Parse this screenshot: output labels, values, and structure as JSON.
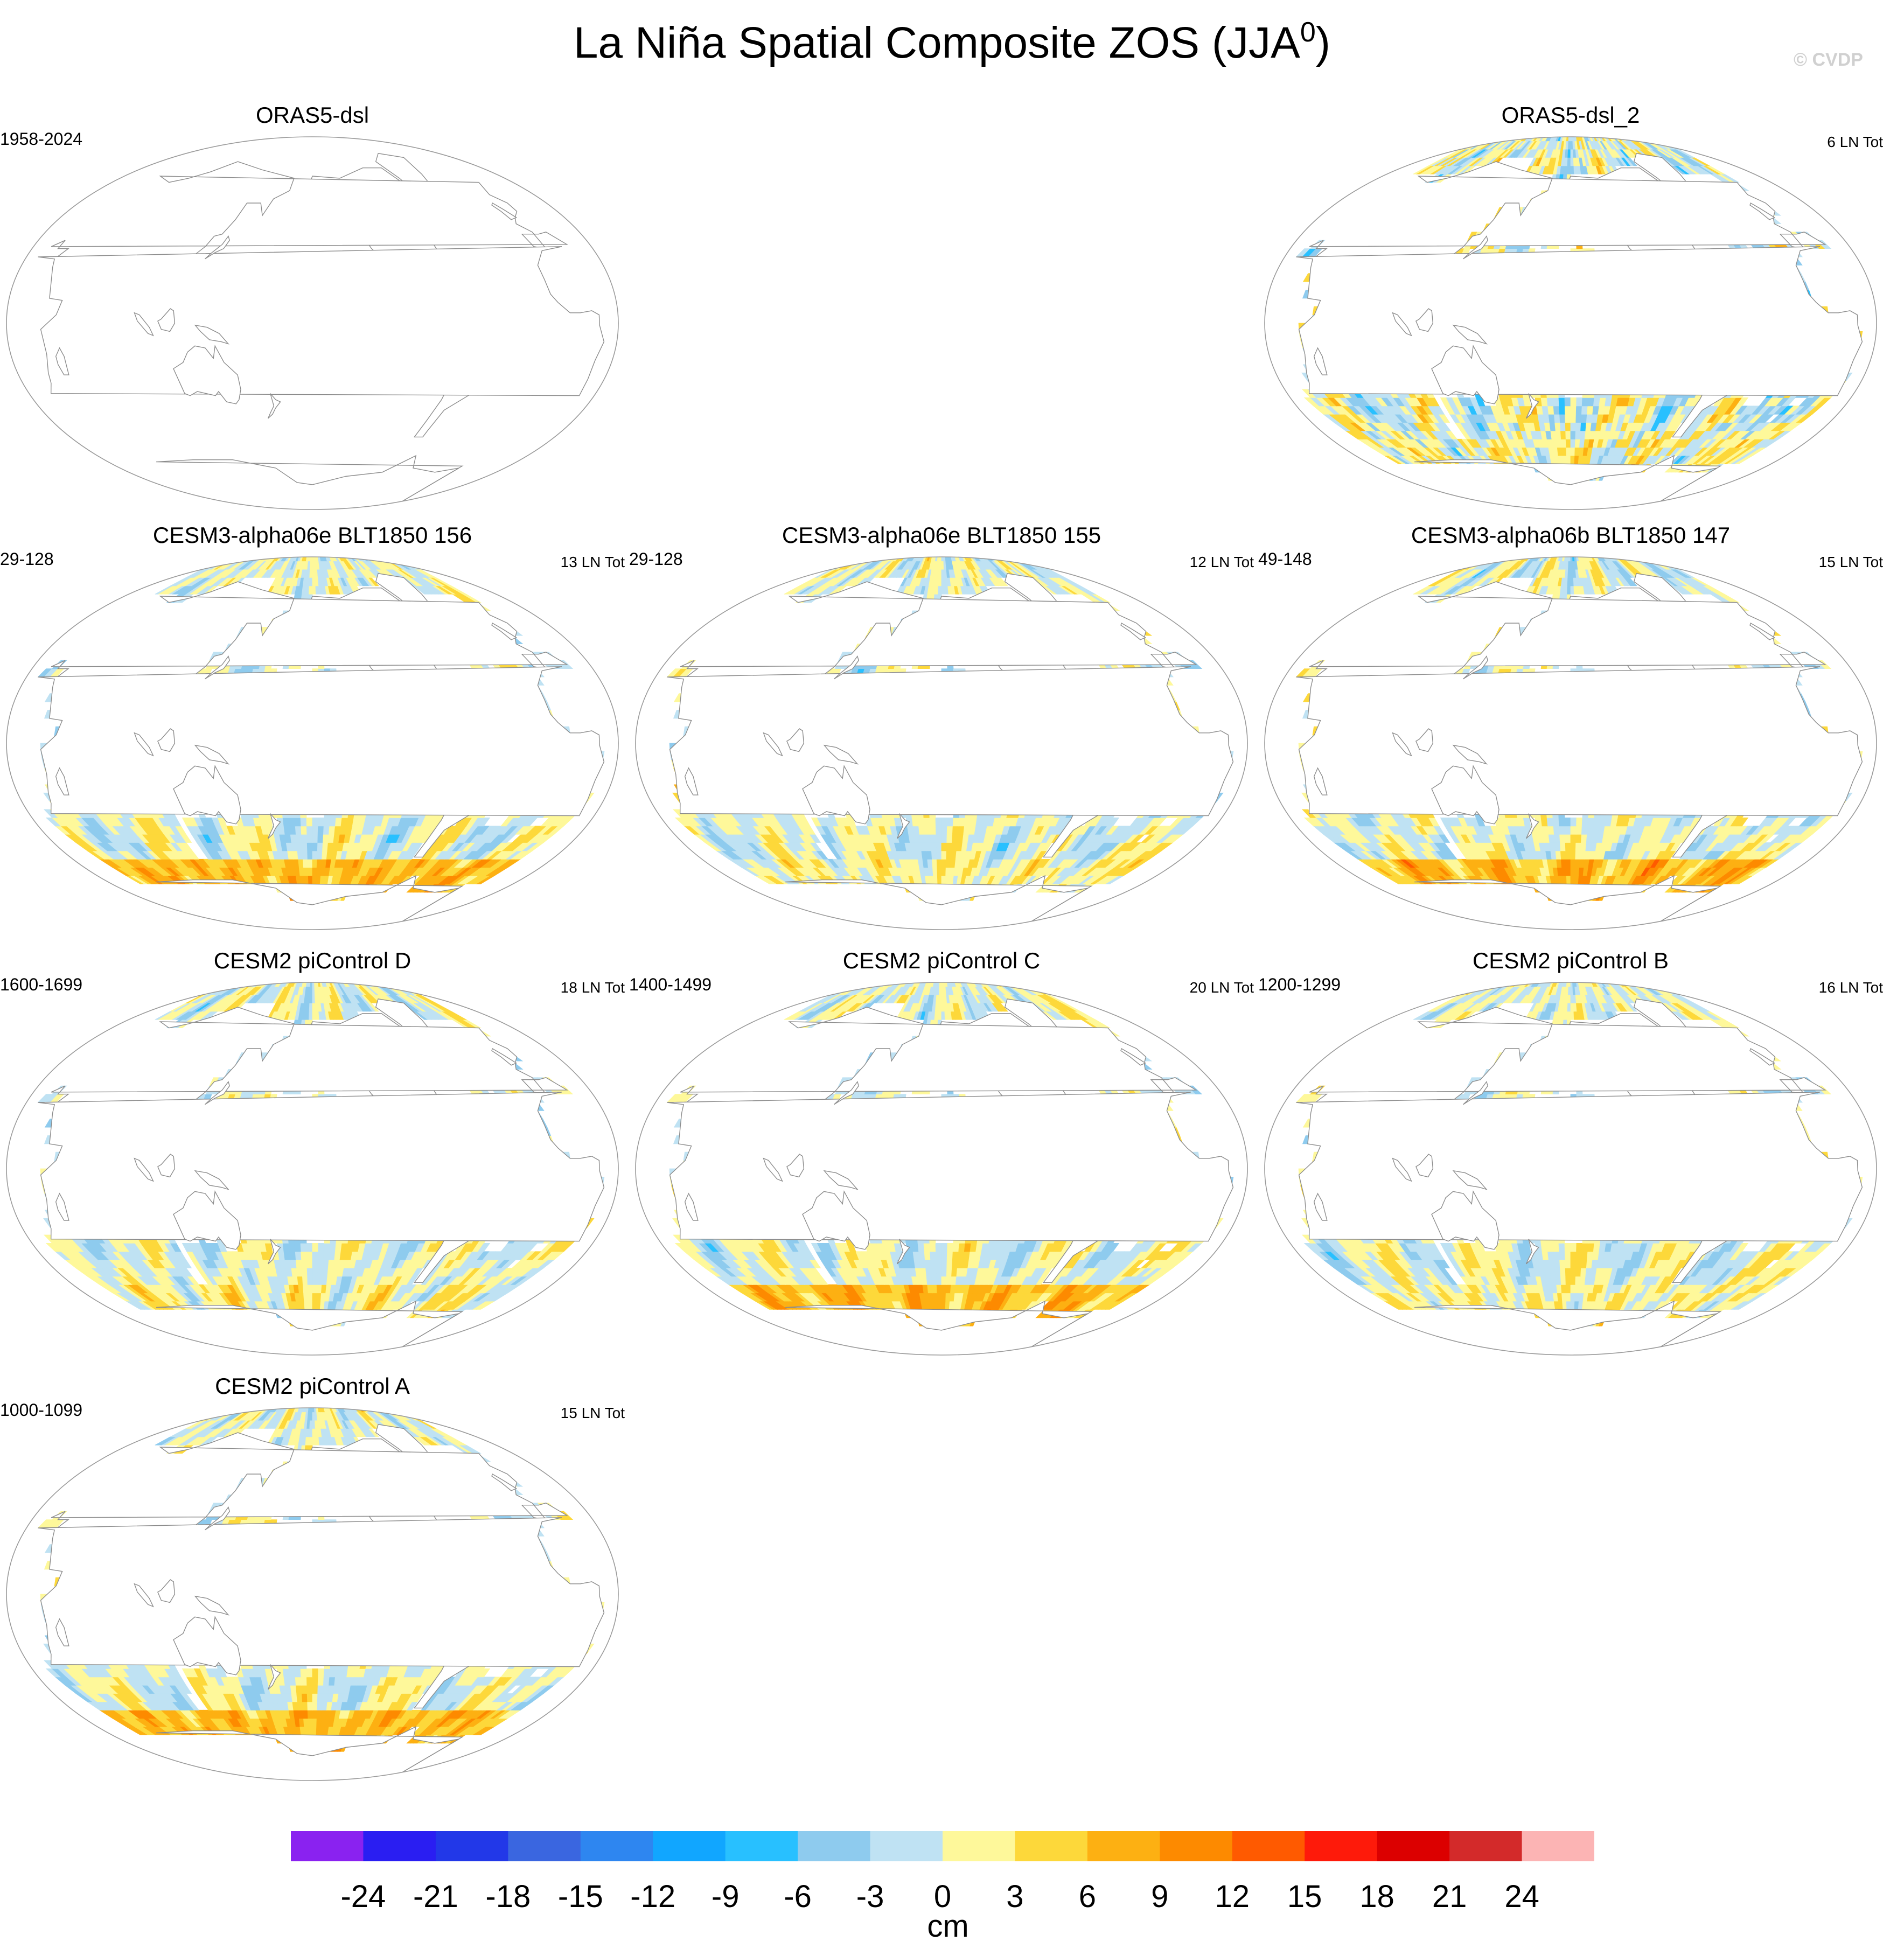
{
  "title": "La Niña Spatial Composite ZOS (JJA",
  "title_sup": "0",
  "title_close": ")",
  "copyright": "© CVDP",
  "colors": {
    "land": "#ffffff",
    "coast": "#8c8c8c",
    "frame": "#9a9a9a"
  },
  "chart_data": {
    "type": "heatmap",
    "variable": "ZOS",
    "units": "cm",
    "colorbar": {
      "levels": [
        -24,
        -21,
        -18,
        -15,
        -12,
        -9,
        -6,
        -3,
        0,
        3,
        6,
        9,
        12,
        15,
        18,
        21,
        24
      ],
      "colors": [
        "#8a22f0",
        "#2a1ef2",
        "#2238e8",
        "#3a66e0",
        "#2e86f0",
        "#11a6ff",
        "#28c0ff",
        "#8ecbee",
        "#bfe2f3",
        "#fef89a",
        "#fdd83a",
        "#fdb012",
        "#fd8a00",
        "#ff5a00",
        "#fe1a0a",
        "#dc0000",
        "#d32a2a",
        "#fcb4b4"
      ]
    },
    "panels": [
      {
        "id": "orasdsl",
        "title": "ORAS5-dsl",
        "years": "1958-2024",
        "count": "",
        "empty": true,
        "col": 0,
        "row": 0
      },
      {
        "id": "orasdsl2",
        "title": "ORAS5-dsl_2",
        "years": "",
        "count": "6 LN Tot",
        "empty": false,
        "col": 2,
        "row": 0,
        "strength": 0.8,
        "noise": 1.0
      },
      {
        "id": "e156",
        "title": "CESM3-alpha06e BLT1850 156",
        "years": "29-128",
        "count": "13 LN Tot",
        "empty": false,
        "col": 0,
        "row": 1,
        "strength": 0.6,
        "noise": 0.3
      },
      {
        "id": "e155",
        "title": "CESM3-alpha06e BLT1850 155",
        "years": "29-128",
        "count": "12 LN Tot",
        "empty": false,
        "col": 1,
        "row": 1,
        "strength": 0.6,
        "noise": 0.3
      },
      {
        "id": "b147",
        "title": "CESM3-alpha06b BLT1850 147",
        "years": "49-148",
        "count": "15 LN Tot",
        "empty": false,
        "col": 2,
        "row": 1,
        "strength": 0.55,
        "noise": 0.3
      },
      {
        "id": "pcD",
        "title": "CESM2 piControl D",
        "years": "1600-1699",
        "count": "18 LN Tot",
        "empty": false,
        "col": 0,
        "row": 2,
        "strength": 0.75,
        "noise": 0.2
      },
      {
        "id": "pcC",
        "title": "CESM2 piControl C",
        "years": "1400-1499",
        "count": "20 LN Tot",
        "empty": false,
        "col": 1,
        "row": 2,
        "strength": 0.95,
        "noise": 0.2
      },
      {
        "id": "pcB",
        "title": "CESM2 piControl B",
        "years": "1200-1299",
        "count": "16 LN Tot",
        "empty": false,
        "col": 2,
        "row": 2,
        "strength": 0.9,
        "noise": 0.2
      },
      {
        "id": "pcA",
        "title": "CESM2 piControl A",
        "years": "1000-1099",
        "count": "15 LN Tot",
        "empty": false,
        "col": 0,
        "row": 3,
        "strength": 1.0,
        "noise": 0.2
      }
    ]
  }
}
